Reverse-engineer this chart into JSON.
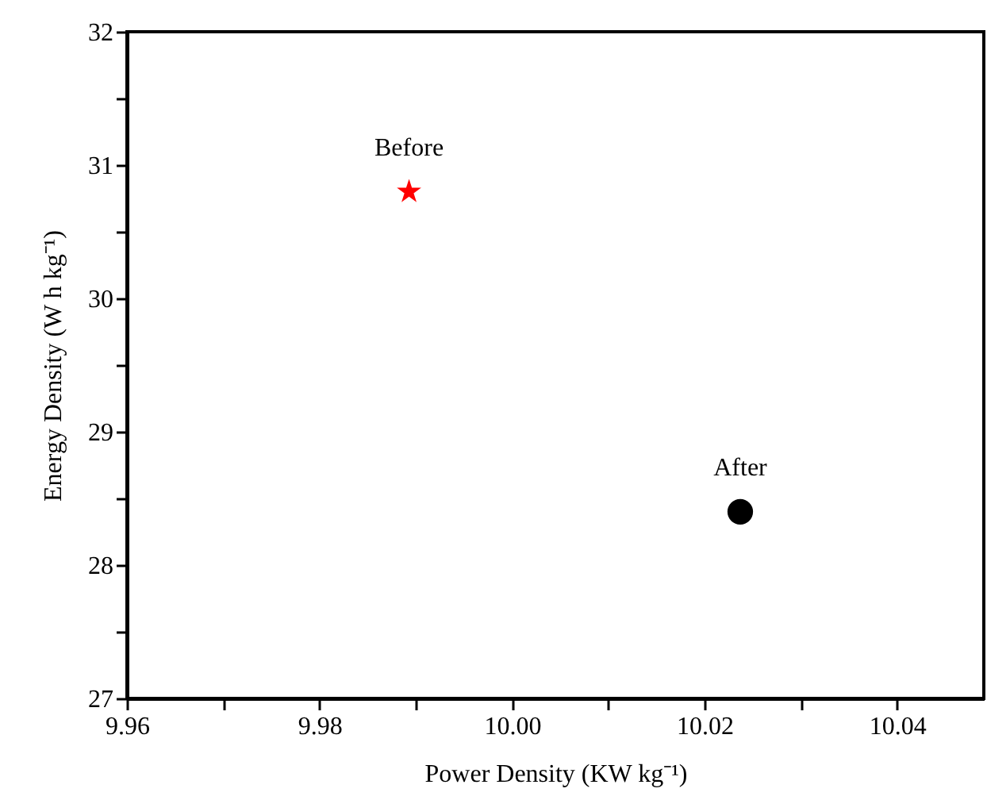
{
  "chart_data": {
    "type": "scatter",
    "xlabel": "Power Density (KW kg⁻¹)",
    "ylabel": "Energy Density (W h kg⁻¹)",
    "xlim": [
      9.96,
      10.049
    ],
    "ylim": [
      27,
      32
    ],
    "xticks": [
      {
        "value": 9.96,
        "label": "9.96"
      },
      {
        "value": 9.97,
        "label": null
      },
      {
        "value": 9.98,
        "label": "9.98"
      },
      {
        "value": 9.99,
        "label": null
      },
      {
        "value": 10.0,
        "label": "10.00"
      },
      {
        "value": 10.01,
        "label": null
      },
      {
        "value": 10.02,
        "label": "10.02"
      },
      {
        "value": 10.03,
        "label": null
      },
      {
        "value": 10.04,
        "label": "10.04"
      }
    ],
    "yticks": [
      27,
      {
        "value": 27.5,
        "label": null
      },
      28,
      {
        "value": 28.5,
        "label": null
      },
      29,
      {
        "value": 29.5,
        "label": null
      },
      30,
      {
        "value": 30.5,
        "label": null
      },
      31,
      {
        "value": 31.5,
        "label": null
      },
      32
    ],
    "grid": false,
    "series": [
      {
        "x": [
          9.9893
        ],
        "values": [
          30.8
        ],
        "color": "#ff0000",
        "marker": "star"
      },
      {
        "x": [
          10.0237
        ],
        "values": [
          28.4
        ],
        "color": "#000000",
        "marker": "circle"
      }
    ],
    "annotations": [
      {
        "text": "Before",
        "x": 9.9893,
        "y": 30.8
      },
      {
        "text": "After",
        "x": 10.0237,
        "y": 28.4
      }
    ]
  }
}
